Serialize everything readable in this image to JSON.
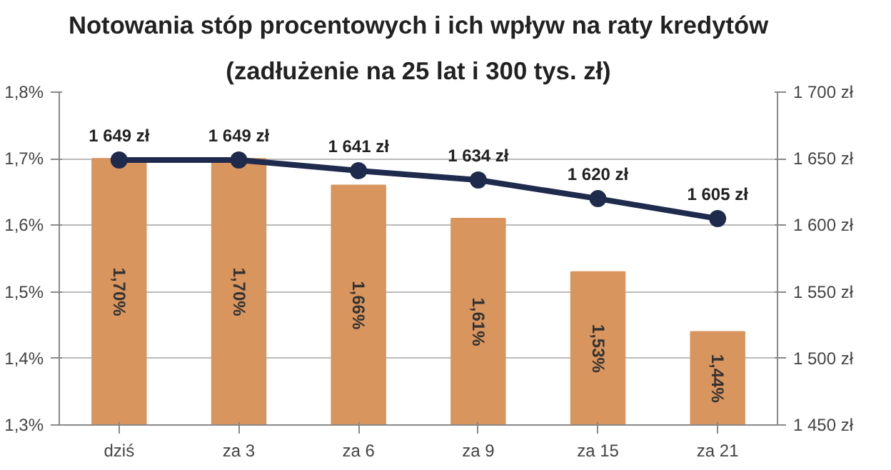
{
  "chart_data": {
    "type": "bar",
    "title": "Notowania stóp procentowych i ich wpływ na raty kredytów",
    "subtitle": "(zadłużenie na 25 lat i 300 tys. zł)",
    "categories": [
      "dziś",
      "za 3",
      "za 6",
      "za 9",
      "za 15",
      "za 21"
    ],
    "series": [
      {
        "color": "#d9955e",
        "values": [
          1.7,
          1.7,
          1.66,
          1.61,
          1.53,
          1.44
        ],
        "value_labels": [
          "1,70%",
          "1,70%",
          "1,66%",
          "1,61%",
          "1,53%",
          "1,44%"
        ]
      },
      {
        "type": "line",
        "axis": "y2",
        "color": "#1f2b4d",
        "marker": "circle",
        "values": [
          1649,
          1649,
          1641,
          1634,
          1620,
          1605
        ],
        "value_labels": [
          "1 649 zł",
          "1 649 zł",
          "1 641 zł",
          "1 634 zł",
          "1 620 zł",
          "1 605 zł"
        ]
      }
    ],
    "ylim": [
      1.3,
      1.8
    ],
    "yticks": [
      {
        "value": 1.3,
        "label": "1,3%"
      },
      {
        "value": 1.4,
        "label": "1,4%"
      },
      {
        "value": 1.5,
        "label": "1,5%"
      },
      {
        "value": 1.6,
        "label": "1,6%"
      },
      {
        "value": 1.7,
        "label": "1,7%"
      },
      {
        "value": 1.8,
        "label": "1,8%"
      }
    ],
    "y2lim": [
      1450,
      1700
    ],
    "y2ticks": [
      {
        "value": 1450,
        "label": "1 450 zł"
      },
      {
        "value": 1500,
        "label": "1 500 zł"
      },
      {
        "value": 1550,
        "label": "1 550 zł"
      },
      {
        "value": 1600,
        "label": "1 600 zł"
      },
      {
        "value": 1650,
        "label": "1 650 zł"
      },
      {
        "value": 1700,
        "label": "1 700 zł"
      }
    ],
    "grid": "y"
  }
}
